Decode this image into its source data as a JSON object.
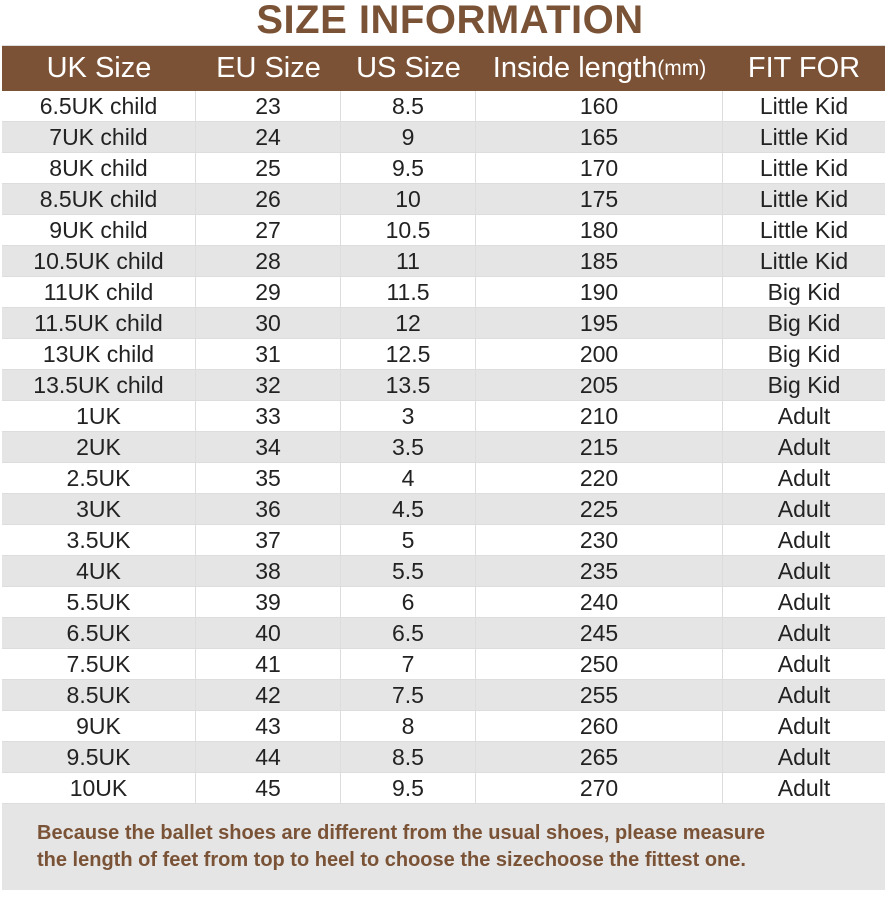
{
  "title": "SIZE INFORMATION",
  "table": {
    "header": [
      "UK Size",
      "EU Size",
      "US Size",
      "Inside length",
      "FIT FOR"
    ],
    "header_unit": "(mm)",
    "rows": [
      [
        "6.5UK child",
        "23",
        "8.5",
        "160",
        "Little Kid"
      ],
      [
        "7UK child",
        "24",
        "9",
        "165",
        "Little Kid"
      ],
      [
        "8UK child",
        "25",
        "9.5",
        "170",
        "Little Kid"
      ],
      [
        "8.5UK child",
        "26",
        "10",
        "175",
        "Little Kid"
      ],
      [
        "9UK child",
        "27",
        "10.5",
        "180",
        "Little Kid"
      ],
      [
        "10.5UK child",
        "28",
        "11",
        "185",
        "Little Kid"
      ],
      [
        "11UK child",
        "29",
        "11.5",
        "190",
        "Big Kid"
      ],
      [
        "11.5UK child",
        "30",
        "12",
        "195",
        "Big Kid"
      ],
      [
        "13UK child",
        "31",
        "12.5",
        "200",
        "Big Kid"
      ],
      [
        "13.5UK child",
        "32",
        "13.5",
        "205",
        "Big Kid"
      ],
      [
        "1UK",
        "33",
        "3",
        "210",
        "Adult"
      ],
      [
        "2UK",
        "34",
        "3.5",
        "215",
        "Adult"
      ],
      [
        "2.5UK",
        "35",
        "4",
        "220",
        "Adult"
      ],
      [
        "3UK",
        "36",
        "4.5",
        "225",
        "Adult"
      ],
      [
        "3.5UK",
        "37",
        "5",
        "230",
        "Adult"
      ],
      [
        "4UK",
        "38",
        "5.5",
        "235",
        "Adult"
      ],
      [
        "5.5UK",
        "39",
        "6",
        "240",
        "Adult"
      ],
      [
        "6.5UK",
        "40",
        "6.5",
        "245",
        "Adult"
      ],
      [
        "7.5UK",
        "41",
        "7",
        "250",
        "Adult"
      ],
      [
        "8.5UK",
        "42",
        "7.5",
        "255",
        "Adult"
      ],
      [
        "9UK",
        "43",
        "8",
        "260",
        "Adult"
      ],
      [
        "9.5UK",
        "44",
        "8.5",
        "265",
        "Adult"
      ],
      [
        "10UK",
        "45",
        "9.5",
        "270",
        "Adult"
      ]
    ]
  },
  "note": [
    "Because the ballet shoes are different from the usual shoes, please measure",
    "the length of feet from top to heel to choose the sizechoose the fittest one."
  ]
}
